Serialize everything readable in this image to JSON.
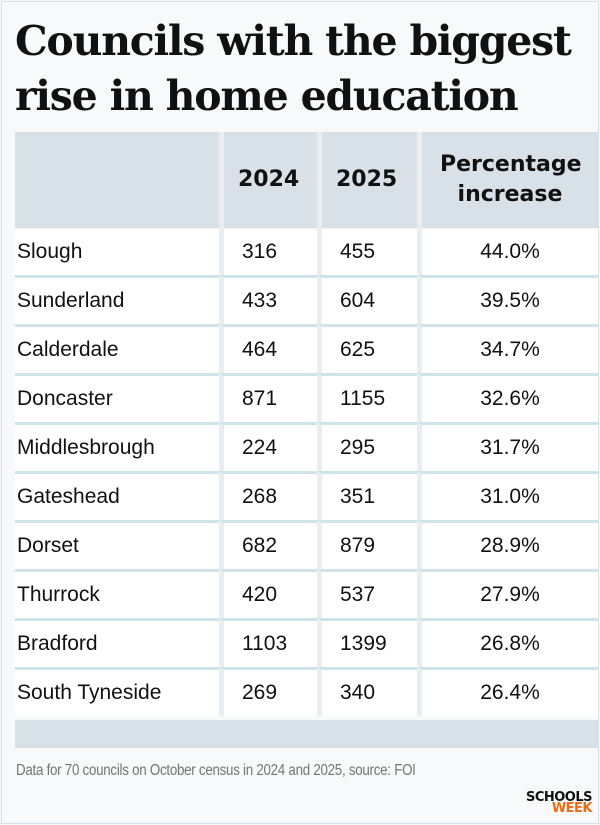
{
  "title": "Councils with the biggest rise in home education",
  "chart_data": {
    "type": "table",
    "title": "Councils with the biggest rise in home education",
    "columns": [
      "",
      "2024",
      "2025",
      "Percentage increase"
    ],
    "rows": [
      {
        "council": "Slough",
        "y2024": "316",
        "y2025": "455",
        "pct": "44.0%"
      },
      {
        "council": "Sunderland",
        "y2024": "433",
        "y2025": "604",
        "pct": "39.5%"
      },
      {
        "council": "Calderdale",
        "y2024": "464",
        "y2025": "625",
        "pct": "34.7%"
      },
      {
        "council": "Doncaster",
        "y2024": "871",
        "y2025": "1155",
        "pct": "32.6%"
      },
      {
        "council": "Middlesbrough",
        "y2024": "224",
        "y2025": "295",
        "pct": "31.7%"
      },
      {
        "council": "Gateshead",
        "y2024": "268",
        "y2025": "351",
        "pct": "31.0%"
      },
      {
        "council": "Dorset",
        "y2024": "682",
        "y2025": "879",
        "pct": "28.9%"
      },
      {
        "council": "Thurrock",
        "y2024": "420",
        "y2025": "537",
        "pct": "27.9%"
      },
      {
        "council": "Bradford",
        "y2024": "1103",
        "y2025": "1399",
        "pct": "26.8%"
      },
      {
        "council": "South Tyneside",
        "y2024": "269",
        "y2025": "340",
        "pct": "26.4%"
      }
    ],
    "note": "Data for 70 councils on October census in 2024 and 2025, source: FOI"
  },
  "logo": {
    "line1": "SCHOOLS",
    "line2": "WEEK",
    "accent_color": "#f26b10"
  }
}
